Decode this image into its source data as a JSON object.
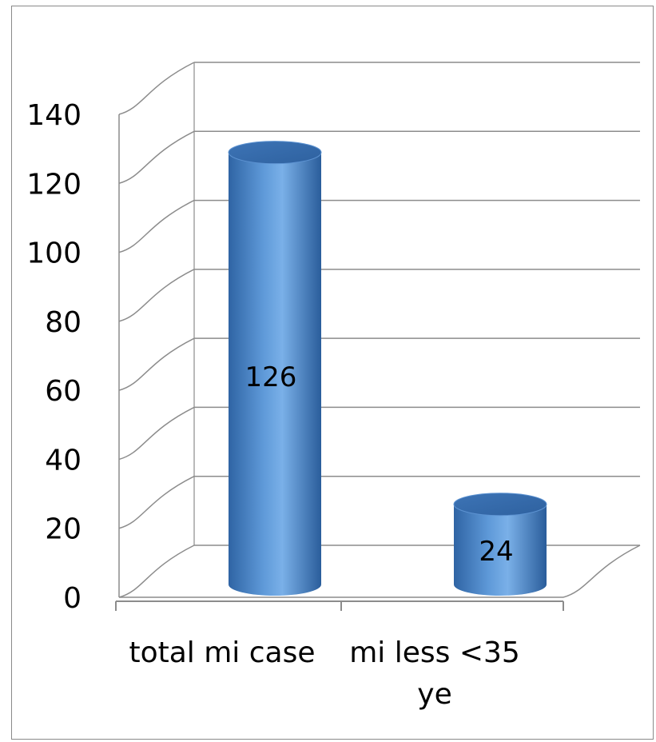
{
  "chart_data": {
    "type": "bar",
    "style": "3d-cylinder",
    "categories": [
      "total mi case",
      "mi less <35 ye"
    ],
    "category_lines": [
      [
        "total mi case"
      ],
      [
        "mi less <35",
        "ye"
      ]
    ],
    "values": [
      126,
      24
    ],
    "data_labels": [
      "126",
      "24"
    ],
    "y_ticks": [
      "0",
      "20",
      "40",
      "60",
      "80",
      "100",
      "120",
      "140"
    ],
    "ylim": [
      0,
      140
    ],
    "grid": true,
    "legend": "none",
    "colors": {
      "bar": "#4a86c8",
      "bar_highlight": "#7db0e6",
      "bar_shadow": "#2b5c99",
      "grid": "#8c8c8c",
      "frame": "#8a8a8a"
    }
  }
}
